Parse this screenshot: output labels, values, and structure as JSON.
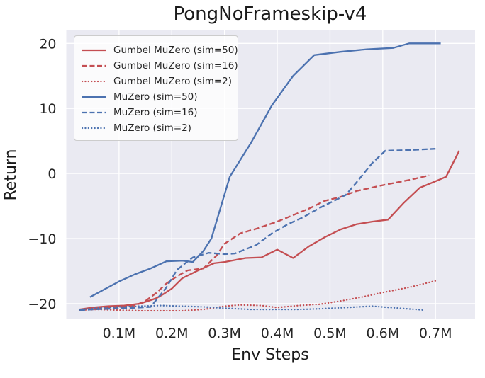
{
  "figure": {
    "title": "PongNoFrameskip-v4",
    "xlabel": "Env Steps",
    "ylabel": "Return"
  },
  "colors": {
    "red": "#C44E52",
    "blue": "#4C72B0",
    "plot_background": "#EAEAF2",
    "gridline": "#FFFFFF",
    "text": "#262626"
  },
  "chart_data": {
    "type": "line",
    "title": "PongNoFrameskip-v4",
    "xlabel": "Env Steps",
    "ylabel": "Return",
    "x_unit": "env steps (M = millions)",
    "xlim": [
      0,
      0.775
    ],
    "ylim": [
      -22.3,
      22.1
    ],
    "grid": true,
    "legend_position": "upper left",
    "xticks": [
      {
        "value": 0.1,
        "label": "0.1M"
      },
      {
        "value": 0.2,
        "label": "0.2M"
      },
      {
        "value": 0.3,
        "label": "0.3M"
      },
      {
        "value": 0.4,
        "label": "0.4M"
      },
      {
        "value": 0.5,
        "label": "0.5M"
      },
      {
        "value": 0.6,
        "label": "0.6M"
      },
      {
        "value": 0.7,
        "label": "0.7M"
      }
    ],
    "yticks": [
      {
        "value": -20,
        "label": "−20"
      },
      {
        "value": -10,
        "label": "−10"
      },
      {
        "value": 0,
        "label": "0"
      },
      {
        "value": 10,
        "label": "10"
      },
      {
        "value": 20,
        "label": "20"
      }
    ],
    "series": [
      {
        "name": "Gumbel MuZero (sim=50)",
        "color": "#C44E52",
        "style": "solid",
        "x": [
          0.025,
          0.05,
          0.08,
          0.11,
          0.14,
          0.17,
          0.185,
          0.2,
          0.22,
          0.25,
          0.28,
          0.3,
          0.34,
          0.37,
          0.4,
          0.43,
          0.46,
          0.49,
          0.52,
          0.55,
          0.58,
          0.61,
          0.64,
          0.67,
          0.7,
          0.72,
          0.745
        ],
        "y": [
          -20.9,
          -20.6,
          -20.4,
          -20.3,
          -20.0,
          -19.2,
          -18.5,
          -17.7,
          -16.1,
          -14.9,
          -13.8,
          -13.6,
          -13.0,
          -12.9,
          -11.7,
          -13.0,
          -11.2,
          -9.8,
          -8.6,
          -7.8,
          -7.4,
          -7.1,
          -4.5,
          -2.2,
          -1.2,
          -0.5,
          3.5
        ]
      },
      {
        "name": "Gumbel MuZero (sim=16)",
        "color": "#C44E52",
        "style": "dashed",
        "x": [
          0.025,
          0.05,
          0.08,
          0.11,
          0.13,
          0.15,
          0.17,
          0.19,
          0.21,
          0.23,
          0.26,
          0.285,
          0.3,
          0.33,
          0.36,
          0.4,
          0.43,
          0.46,
          0.49,
          0.52,
          0.55,
          0.6,
          0.65,
          0.688
        ],
        "y": [
          -21.0,
          -20.8,
          -20.6,
          -20.5,
          -20.3,
          -19.6,
          -18.4,
          -16.9,
          -15.8,
          -14.9,
          -14.6,
          -12.6,
          -10.8,
          -9.2,
          -8.5,
          -7.4,
          -6.4,
          -5.4,
          -4.2,
          -3.6,
          -2.7,
          -1.8,
          -1.0,
          -0.3
        ]
      },
      {
        "name": "Gumbel MuZero (sim=2)",
        "color": "#C44E52",
        "style": "dotted",
        "x": [
          0.025,
          0.06,
          0.1,
          0.14,
          0.18,
          0.22,
          0.26,
          0.3,
          0.33,
          0.37,
          0.4,
          0.44,
          0.48,
          0.52,
          0.56,
          0.6,
          0.65,
          0.7
        ],
        "y": [
          -21.0,
          -20.9,
          -21.0,
          -21.1,
          -21.1,
          -21.1,
          -20.9,
          -20.4,
          -20.2,
          -20.3,
          -20.6,
          -20.3,
          -20.1,
          -19.6,
          -19.0,
          -18.3,
          -17.5,
          -16.5
        ]
      },
      {
        "name": "MuZero (sim=50)",
        "color": "#4C72B0",
        "style": "solid",
        "x": [
          0.045,
          0.07,
          0.1,
          0.13,
          0.16,
          0.19,
          0.22,
          0.24,
          0.26,
          0.275,
          0.31,
          0.35,
          0.39,
          0.43,
          0.47,
          0.52,
          0.57,
          0.62,
          0.65,
          0.71
        ],
        "y": [
          -19.0,
          -17.9,
          -16.6,
          -15.5,
          -14.6,
          -13.5,
          -13.4,
          -13.6,
          -11.9,
          -10.0,
          -0.5,
          4.7,
          10.5,
          15.0,
          18.2,
          18.7,
          19.1,
          19.3,
          20.0,
          20.0
        ]
      },
      {
        "name": "MuZero (sim=16)",
        "color": "#4C72B0",
        "style": "dashed",
        "x": [
          0.025,
          0.05,
          0.08,
          0.11,
          0.14,
          0.16,
          0.19,
          0.21,
          0.24,
          0.27,
          0.3,
          0.32,
          0.36,
          0.39,
          0.42,
          0.45,
          0.48,
          0.51,
          0.53,
          0.55,
          0.58,
          0.605,
          0.65,
          0.7
        ],
        "y": [
          -21.0,
          -20.9,
          -20.8,
          -20.7,
          -20.6,
          -20.5,
          -17.5,
          -14.8,
          -12.9,
          -12.2,
          -12.4,
          -12.3,
          -11.0,
          -9.2,
          -7.8,
          -6.7,
          -5.3,
          -4.1,
          -3.3,
          -1.4,
          1.6,
          3.5,
          3.6,
          3.8
        ]
      },
      {
        "name": "MuZero (sim=2)",
        "color": "#4C72B0",
        "style": "dotted",
        "x": [
          0.025,
          0.06,
          0.1,
          0.14,
          0.18,
          0.22,
          0.26,
          0.3,
          0.35,
          0.4,
          0.44,
          0.48,
          0.53,
          0.58,
          0.63,
          0.68
        ],
        "y": [
          -20.9,
          -20.7,
          -20.5,
          -20.4,
          -20.3,
          -20.4,
          -20.5,
          -20.7,
          -20.9,
          -20.9,
          -20.9,
          -20.8,
          -20.6,
          -20.4,
          -20.7,
          -21.0
        ]
      }
    ]
  }
}
